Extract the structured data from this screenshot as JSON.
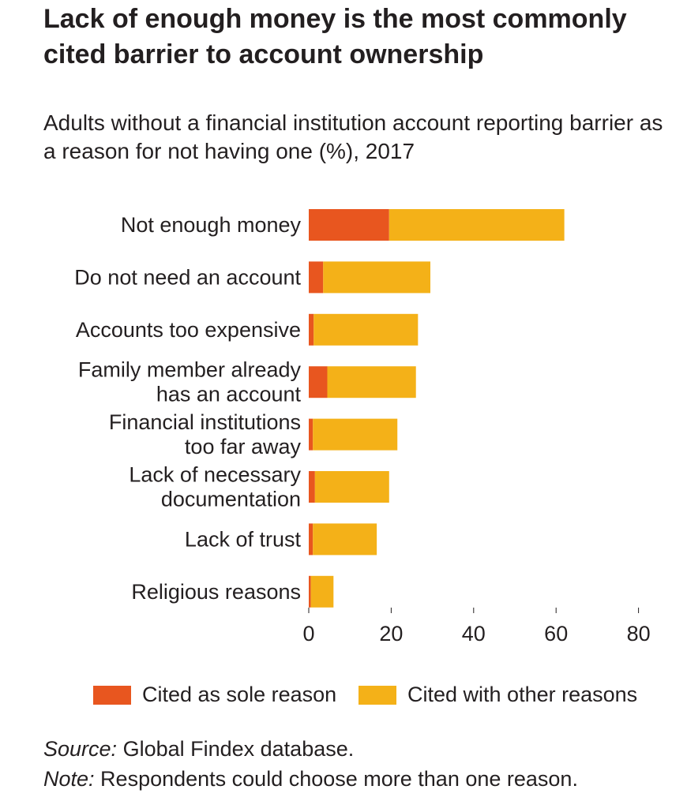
{
  "title": "Lack of enough money is the most commonly cited barrier to account ownership",
  "subtitle": "Adults without a financial institution account reporting barrier as a reason for not having one (%), 2017",
  "chart_data": {
    "type": "bar",
    "orientation": "horizontal",
    "stacked": true,
    "categories": [
      [
        "Not enough money"
      ],
      [
        "Do not need an account"
      ],
      [
        "Accounts too expensive"
      ],
      [
        "Family member already",
        "has an account"
      ],
      [
        "Financial institutions",
        "too far away"
      ],
      [
        "Lack of necessary",
        "documentation"
      ],
      [
        "Lack of trust"
      ],
      [
        "Religious reasons"
      ]
    ],
    "series": [
      {
        "name": "Cited as sole reason",
        "color": "#e8561f",
        "values": [
          19.5,
          3.5,
          1.2,
          4.5,
          1.0,
          1.5,
          1.0,
          0.5
        ]
      },
      {
        "name": "Cited with other reasons",
        "color": "#f4b118",
        "values": [
          42.5,
          26.0,
          25.3,
          21.5,
          20.5,
          18.0,
          15.5,
          5.5
        ]
      }
    ],
    "xlim": [
      0,
      80
    ],
    "xticks": [
      "0",
      "20",
      "40",
      "60",
      "80"
    ],
    "xlabel": "",
    "ylabel": "",
    "grid": false,
    "legend": "bottom"
  },
  "legend": {
    "items": [
      {
        "label": "Cited as sole reason",
        "color": "#e8561f"
      },
      {
        "label": "Cited with other reasons",
        "color": "#f4b118"
      }
    ]
  },
  "notes": {
    "source_key": "Source:",
    "source_text": " Global Findex database.",
    "note_key": "Note:",
    "note_text": " Respondents could choose more than one reason."
  }
}
